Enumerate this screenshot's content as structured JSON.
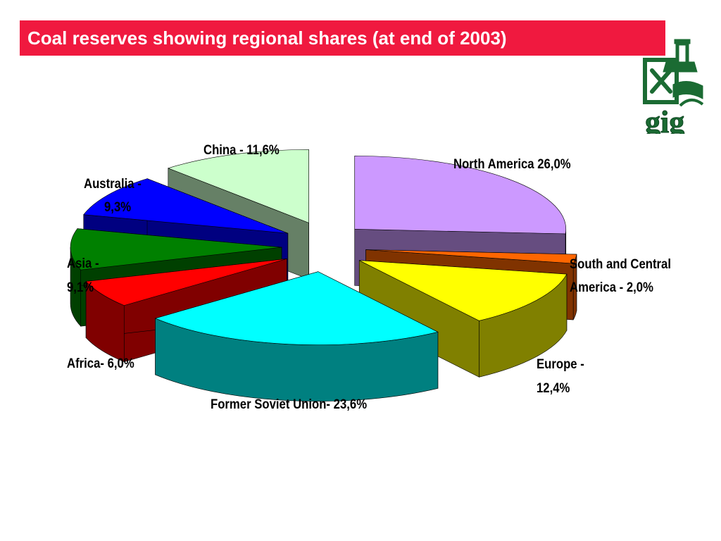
{
  "title": "Coal reserves showing regional shares (at end of 2003)",
  "colors": {
    "title_bg": "#f0193f",
    "title_text": "#ffffff",
    "logo_green": "#1b6b33"
  },
  "logo": {
    "text": "gig"
  },
  "labels": {
    "north_america": "North America 26,0%",
    "south_central_1": "South and Central",
    "south_central_2": "America - 2,0%",
    "europe_1": "Europe -",
    "europe_2": "12,4%",
    "fsu": "Former Soviet Union- 23,6%",
    "africa": "Africa- 6,0%",
    "asia_1": "Asia -",
    "asia_2": "9,1%",
    "australia_1": "Australia -",
    "australia_2": "9,3%",
    "china": "China - 11,6%"
  },
  "chart_data": {
    "type": "pie",
    "title": "Coal reserves showing regional shares (at end of 2003)",
    "style": "3d-exploded",
    "unit": "%",
    "slices": [
      {
        "name": "North America",
        "value": 26.0,
        "color": "#cc99ff"
      },
      {
        "name": "South and Central America",
        "value": 2.0,
        "color": "#ff6600"
      },
      {
        "name": "Europe",
        "value": 12.4,
        "color": "#ffff00"
      },
      {
        "name": "Former Soviet Union",
        "value": 23.6,
        "color": "#00ffff"
      },
      {
        "name": "Africa",
        "value": 6.0,
        "color": "#ff0000"
      },
      {
        "name": "Asia",
        "value": 9.1,
        "color": "#008000"
      },
      {
        "name": "Australia",
        "value": 9.3,
        "color": "#0000ff"
      },
      {
        "name": "China",
        "value": 11.6,
        "color": "#ccffcc"
      }
    ]
  }
}
